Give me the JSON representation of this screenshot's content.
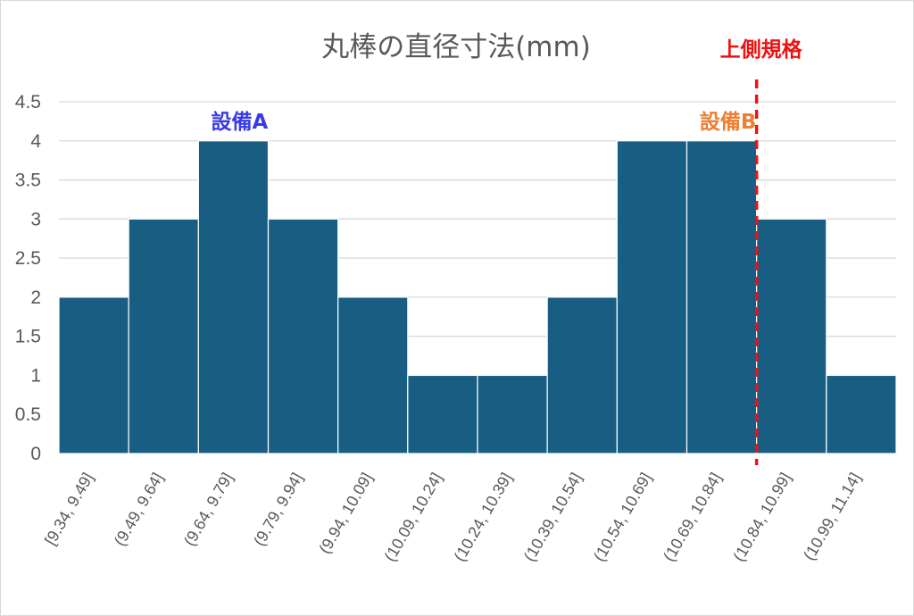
{
  "chart_data": {
    "type": "bar",
    "title": "丸棒の直径寸法(mm)",
    "xlabel": "",
    "ylabel": "",
    "categories": [
      "[9.34, 9.49]",
      "(9.49, 9.64]",
      "(9.64, 9.79]",
      "(9.79, 9.94]",
      "(9.94, 10.09]",
      "(10.09, 10.24]",
      "(10.24, 10.39]",
      "(10.39, 10.54]",
      "(10.54, 10.69]",
      "(10.69, 10.84]",
      "(10.84, 10.99]",
      "(10.99, 11.14]"
    ],
    "values": [
      2,
      3,
      4,
      3,
      2,
      1,
      1,
      2,
      4,
      4,
      3,
      1
    ],
    "ylim": [
      0,
      4.5
    ],
    "yticks": [
      "0",
      "0.5",
      "1",
      "1.5",
      "2",
      "2.5",
      "3",
      "3.5",
      "4",
      "4.5"
    ],
    "grid": true,
    "bar_color": "#175e82",
    "annotations": [
      {
        "id": "machine-a",
        "text": "設備A",
        "color": "#3a3ae6",
        "category_index": 2
      },
      {
        "id": "machine-b",
        "text": "設備B",
        "color": "#ed7d31",
        "category_index": 9
      }
    ],
    "reference_line": {
      "label": "上側規格",
      "value": 10.84,
      "style": "dashed",
      "color": "#ee1111"
    }
  }
}
